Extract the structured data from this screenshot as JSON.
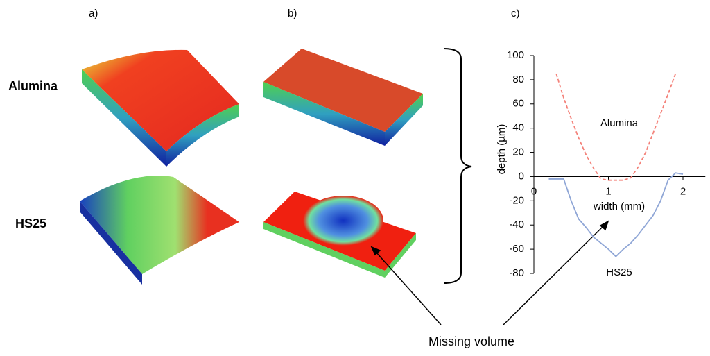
{
  "panel_labels": [
    "a)",
    "b)",
    "c)"
  ],
  "row_labels": [
    "Alumina",
    "HS25"
  ],
  "annotation": "Missing volume",
  "chart_data": {
    "type": "line",
    "x_label": "width (mm)",
    "y_label": "depth (µm)",
    "x": [
      0.2,
      0.3,
      0.4,
      0.5,
      0.6,
      0.7,
      0.8,
      0.9,
      1.0,
      1.1,
      1.2,
      1.3,
      1.4,
      1.5,
      1.6,
      1.7,
      1.8,
      1.9,
      2.0
    ],
    "series": [
      {
        "name": "Alumina",
        "color": "#f4827a",
        "dashed": true,
        "values": [
          null,
          85,
          65,
          48,
          32,
          18,
          7,
          -2,
          -3,
          -3,
          -3,
          -1,
          8,
          20,
          36,
          52,
          68,
          85,
          null
        ]
      },
      {
        "name": "HS25",
        "color": "#8fa6d6",
        "dashed": false,
        "values": [
          -2,
          -2,
          -2,
          -20,
          -35,
          -42,
          -50,
          -55,
          -60,
          -66,
          -60,
          -55,
          -48,
          -40,
          -32,
          -20,
          -3,
          3,
          2
        ]
      }
    ],
    "xlim": [
      0,
      2.3
    ],
    "ylim": [
      -80,
      100
    ],
    "xticks": [
      0,
      1,
      2
    ],
    "yticks": [
      -80,
      -60,
      -40,
      -20,
      0,
      20,
      40,
      60,
      80,
      100
    ]
  }
}
